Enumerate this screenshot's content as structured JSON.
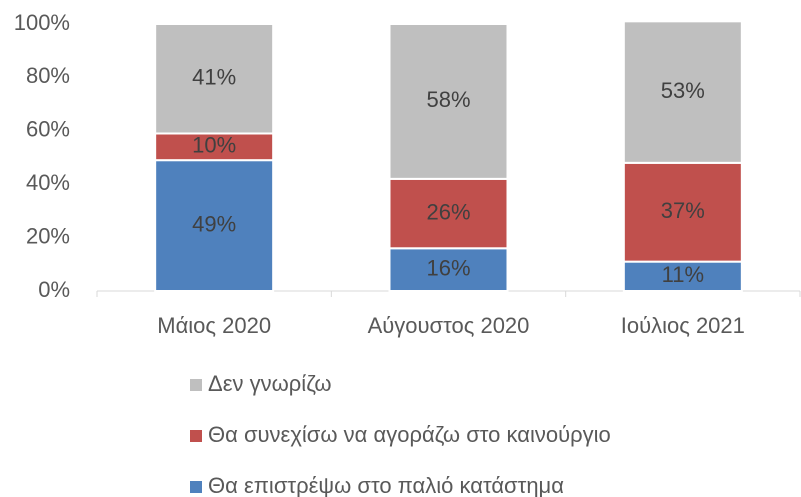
{
  "chart_data": {
    "type": "stacked_bar",
    "categories": [
      "Μάιος 2020",
      "Αύγουστος 2020",
      "Ιούλιος 2021"
    ],
    "series": [
      {
        "name": "Θα επιστρέψω στο παλιό κατάστημα",
        "color": "#4f81bd",
        "values": [
          49,
          16,
          11
        ],
        "value_labels": [
          "49%",
          "16%",
          "11%"
        ]
      },
      {
        "name": "Θα συνεχίσω να αγοράζω στο καινούργιο",
        "color": "#c0504d",
        "values": [
          10,
          26,
          37
        ],
        "value_labels": [
          "10%",
          "26%",
          "37%"
        ]
      },
      {
        "name": "Δεν γνωρίζω",
        "color": "#bfbfbf",
        "values": [
          41,
          58,
          53
        ],
        "value_labels": [
          "41%",
          "58%",
          "53%"
        ]
      }
    ],
    "ylim": [
      0,
      100
    ],
    "yticks": [
      {
        "value": 0,
        "label": "0%"
      },
      {
        "value": 20,
        "label": "20%"
      },
      {
        "value": 40,
        "label": "40%"
      },
      {
        "value": 60,
        "label": "60%"
      },
      {
        "value": 80,
        "label": "80%"
      },
      {
        "value": 100,
        "label": "100%"
      }
    ],
    "grid": false,
    "legend": "bottom"
  }
}
